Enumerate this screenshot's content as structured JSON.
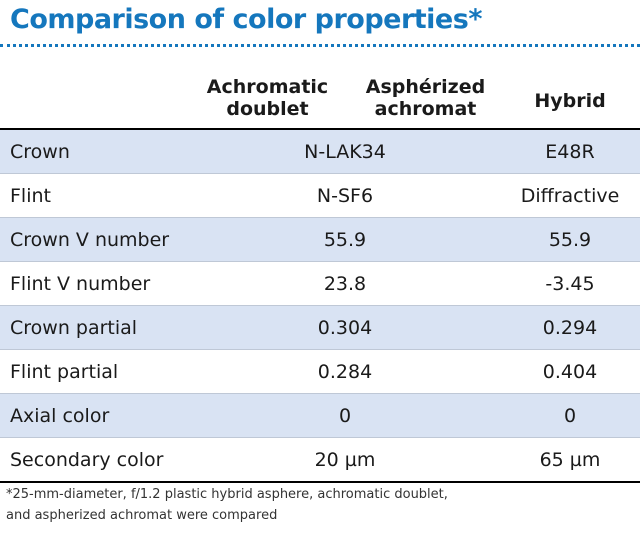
{
  "title": "Comparison of color properties*",
  "columns": {
    "achromatic_doublet": "Achromatic\ndoublet",
    "aspherized_achromat": "Asphérized\nachromat",
    "hybrid": "Hybrid"
  },
  "rows": [
    {
      "label": "Crown",
      "shared": "N-LAK34",
      "hybrid": "E48R"
    },
    {
      "label": "Flint",
      "shared": "N-SF6",
      "hybrid": "Diffractive"
    },
    {
      "label": "Crown V number",
      "shared": "55.9",
      "hybrid": "55.9"
    },
    {
      "label": "Flint V number",
      "shared": "23.8",
      "hybrid": "-3.45"
    },
    {
      "label": "Crown partial",
      "shared": "0.304",
      "hybrid": "0.294"
    },
    {
      "label": "Flint partial",
      "shared": "0.284",
      "hybrid": "0.404"
    },
    {
      "label": "Axial color",
      "shared": "0",
      "hybrid": "0"
    },
    {
      "label": "Secondary color",
      "shared": "20 µm",
      "hybrid": "65 µm"
    }
  ],
  "footnote": {
    "line1": "*25-mm-diameter, f/1.2 plastic hybrid asphere, achromatic doublet,",
    "line2": "and aspherized achromat were compared"
  },
  "colors": {
    "title": "#1577bd",
    "row_shade": "#d9e3f3"
  }
}
